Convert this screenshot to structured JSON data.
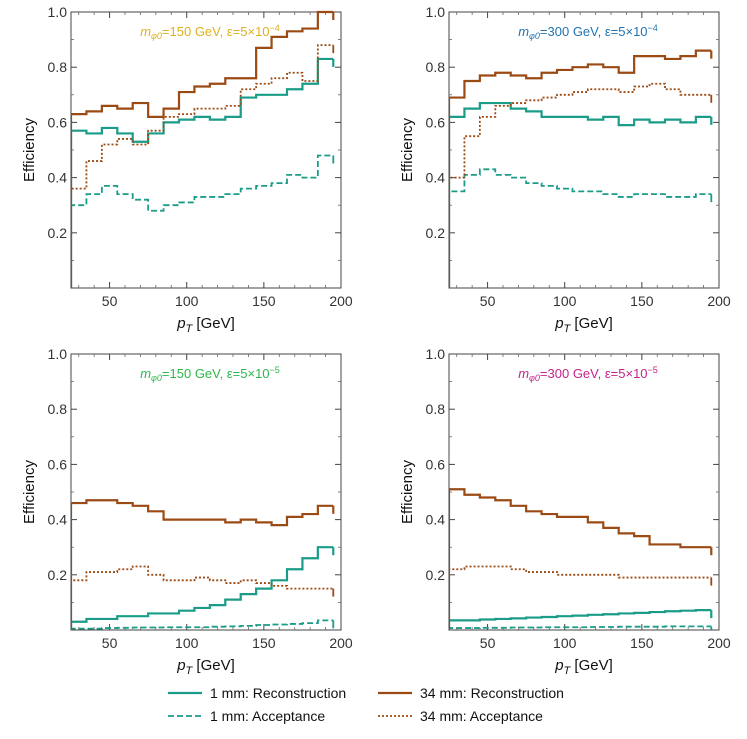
{
  "legend": {
    "reco1": "1 mm: Reconstruction",
    "acc1": "1 mm: Acceptance",
    "reco34": "34 mm: Reconstruction",
    "acc34": "34 mm: Acceptance"
  },
  "colors": {
    "teal": "#1a9c88",
    "brown": "#9b4a14"
  },
  "chart_data": [
    {
      "type": "line",
      "title_parts": [
        "m",
        "φ0",
        "=150 GeV, ε=5×10",
        "−4"
      ],
      "title_color": "#e0b020",
      "xlabel_parts": [
        "p",
        "T",
        " [GeV]"
      ],
      "ylabel": "Efficiency",
      "xlim": [
        25,
        200
      ],
      "ylim": [
        0,
        1
      ],
      "xticks": [
        "50",
        "100",
        "150",
        "200"
      ],
      "yticks": [
        "0.2",
        "0.4",
        "0.6",
        "0.8",
        "1.0"
      ],
      "x_edges": [
        25,
        35,
        45,
        55,
        65,
        75,
        85,
        95,
        105,
        115,
        125,
        135,
        145,
        155,
        165,
        175,
        185,
        195
      ],
      "series": [
        {
          "name": "1 mm: Reconstruction",
          "values": [
            0.57,
            0.56,
            0.58,
            0.56,
            0.53,
            0.56,
            0.6,
            0.61,
            0.62,
            0.61,
            0.62,
            0.69,
            0.7,
            0.7,
            0.72,
            0.74,
            0.83
          ]
        },
        {
          "name": "1 mm: Acceptance",
          "values": [
            0.3,
            0.34,
            0.37,
            0.34,
            0.32,
            0.28,
            0.3,
            0.31,
            0.33,
            0.33,
            0.34,
            0.36,
            0.37,
            0.38,
            0.41,
            0.4,
            0.48
          ]
        },
        {
          "name": "34 mm: Reconstruction",
          "values": [
            0.63,
            0.64,
            0.66,
            0.65,
            0.67,
            0.62,
            0.65,
            0.71,
            0.73,
            0.74,
            0.76,
            0.76,
            0.87,
            0.91,
            0.93,
            0.94,
            1.0
          ]
        },
        {
          "name": "34 mm: Acceptance",
          "values": [
            0.36,
            0.46,
            0.52,
            0.54,
            0.52,
            0.57,
            0.62,
            0.63,
            0.65,
            0.65,
            0.66,
            0.72,
            0.74,
            0.76,
            0.78,
            0.75,
            0.88
          ]
        }
      ]
    },
    {
      "type": "line",
      "title_parts": [
        "m",
        "φ0",
        "=300 GeV, ε=5×10",
        "−4"
      ],
      "title_color": "#1f74b0",
      "xlabel_parts": [
        "p",
        "T",
        " [GeV]"
      ],
      "ylabel": "Efficiency",
      "xlim": [
        25,
        200
      ],
      "ylim": [
        0,
        1
      ],
      "xticks": [
        "50",
        "100",
        "150",
        "200"
      ],
      "yticks": [
        "0.2",
        "0.4",
        "0.6",
        "0.8",
        "1.0"
      ],
      "x_edges": [
        25,
        35,
        45,
        55,
        65,
        75,
        85,
        95,
        105,
        115,
        125,
        135,
        145,
        155,
        165,
        175,
        185,
        195
      ],
      "series": [
        {
          "name": "1 mm: Reconstruction",
          "values": [
            0.62,
            0.65,
            0.67,
            0.67,
            0.65,
            0.64,
            0.62,
            0.62,
            0.62,
            0.61,
            0.62,
            0.59,
            0.61,
            0.6,
            0.61,
            0.6,
            0.62
          ]
        },
        {
          "name": "1 mm: Acceptance",
          "values": [
            0.35,
            0.41,
            0.43,
            0.41,
            0.4,
            0.38,
            0.37,
            0.36,
            0.35,
            0.35,
            0.34,
            0.33,
            0.34,
            0.34,
            0.33,
            0.33,
            0.34
          ]
        },
        {
          "name": "34 mm: Reconstruction",
          "values": [
            0.69,
            0.75,
            0.77,
            0.78,
            0.77,
            0.76,
            0.78,
            0.79,
            0.8,
            0.81,
            0.8,
            0.78,
            0.84,
            0.84,
            0.83,
            0.84,
            0.86
          ]
        },
        {
          "name": "34 mm: Acceptance",
          "values": [
            0.4,
            0.55,
            0.62,
            0.66,
            0.67,
            0.68,
            0.69,
            0.7,
            0.71,
            0.72,
            0.72,
            0.71,
            0.73,
            0.74,
            0.72,
            0.7,
            0.7
          ]
        }
      ]
    },
    {
      "type": "line",
      "title_parts": [
        "m",
        "φ0",
        "=150 GeV, ε=5×10",
        "−5"
      ],
      "title_color": "#2db84a",
      "xlabel_parts": [
        "p",
        "T",
        " [GeV]"
      ],
      "ylabel": "Efficiency",
      "xlim": [
        25,
        200
      ],
      "ylim": [
        0,
        1
      ],
      "xticks": [
        "50",
        "100",
        "150",
        "200"
      ],
      "yticks": [
        "0.2",
        "0.4",
        "0.6",
        "0.8",
        "1.0"
      ],
      "x_edges": [
        25,
        35,
        45,
        55,
        65,
        75,
        85,
        95,
        105,
        115,
        125,
        135,
        145,
        155,
        165,
        175,
        185,
        195
      ],
      "series": [
        {
          "name": "1 mm: Reconstruction",
          "values": [
            0.03,
            0.04,
            0.04,
            0.05,
            0.05,
            0.06,
            0.06,
            0.07,
            0.08,
            0.09,
            0.11,
            0.13,
            0.15,
            0.18,
            0.22,
            0.26,
            0.3
          ]
        },
        {
          "name": "1 mm: Acceptance",
          "values": [
            0.005,
            0.005,
            0.007,
            0.008,
            0.009,
            0.009,
            0.01,
            0.01,
            0.01,
            0.012,
            0.013,
            0.015,
            0.018,
            0.02,
            0.022,
            0.025,
            0.035
          ]
        },
        {
          "name": "34 mm: Reconstruction",
          "values": [
            0.46,
            0.47,
            0.47,
            0.46,
            0.45,
            0.43,
            0.4,
            0.4,
            0.4,
            0.4,
            0.39,
            0.4,
            0.39,
            0.38,
            0.41,
            0.42,
            0.45
          ]
        },
        {
          "name": "34 mm: Acceptance",
          "values": [
            0.18,
            0.21,
            0.21,
            0.22,
            0.23,
            0.2,
            0.18,
            0.18,
            0.19,
            0.18,
            0.17,
            0.18,
            0.17,
            0.16,
            0.15,
            0.15,
            0.15
          ]
        }
      ]
    },
    {
      "type": "line",
      "title_parts": [
        "m",
        "φ0",
        "=300 GeV, ε=5×10",
        "−5"
      ],
      "title_color": "#c8218a",
      "xlabel_parts": [
        "p",
        "T",
        " [GeV]"
      ],
      "ylabel": "Efficiency",
      "xlim": [
        25,
        200
      ],
      "ylim": [
        0,
        1
      ],
      "xticks": [
        "50",
        "100",
        "150",
        "200"
      ],
      "yticks": [
        "0.2",
        "0.4",
        "0.6",
        "0.8",
        "1.0"
      ],
      "x_edges": [
        25,
        35,
        45,
        55,
        65,
        75,
        85,
        95,
        105,
        115,
        125,
        135,
        145,
        155,
        165,
        175,
        185,
        195
      ],
      "series": [
        {
          "name": "1 mm: Reconstruction",
          "values": [
            0.035,
            0.035,
            0.038,
            0.04,
            0.042,
            0.045,
            0.047,
            0.05,
            0.052,
            0.055,
            0.057,
            0.06,
            0.062,
            0.065,
            0.068,
            0.07,
            0.072
          ]
        },
        {
          "name": "1 mm: Acceptance",
          "values": [
            0.007,
            0.007,
            0.008,
            0.008,
            0.009,
            0.009,
            0.01,
            0.01,
            0.01,
            0.011,
            0.011,
            0.012,
            0.012,
            0.012,
            0.013,
            0.013,
            0.013
          ]
        },
        {
          "name": "34 mm: Reconstruction",
          "values": [
            0.51,
            0.49,
            0.48,
            0.47,
            0.45,
            0.43,
            0.42,
            0.41,
            0.41,
            0.39,
            0.37,
            0.35,
            0.34,
            0.31,
            0.31,
            0.3,
            0.3
          ]
        },
        {
          "name": "34 mm: Acceptance",
          "values": [
            0.22,
            0.23,
            0.23,
            0.23,
            0.22,
            0.21,
            0.21,
            0.2,
            0.2,
            0.2,
            0.2,
            0.19,
            0.19,
            0.19,
            0.19,
            0.19,
            0.19
          ]
        }
      ]
    }
  ]
}
